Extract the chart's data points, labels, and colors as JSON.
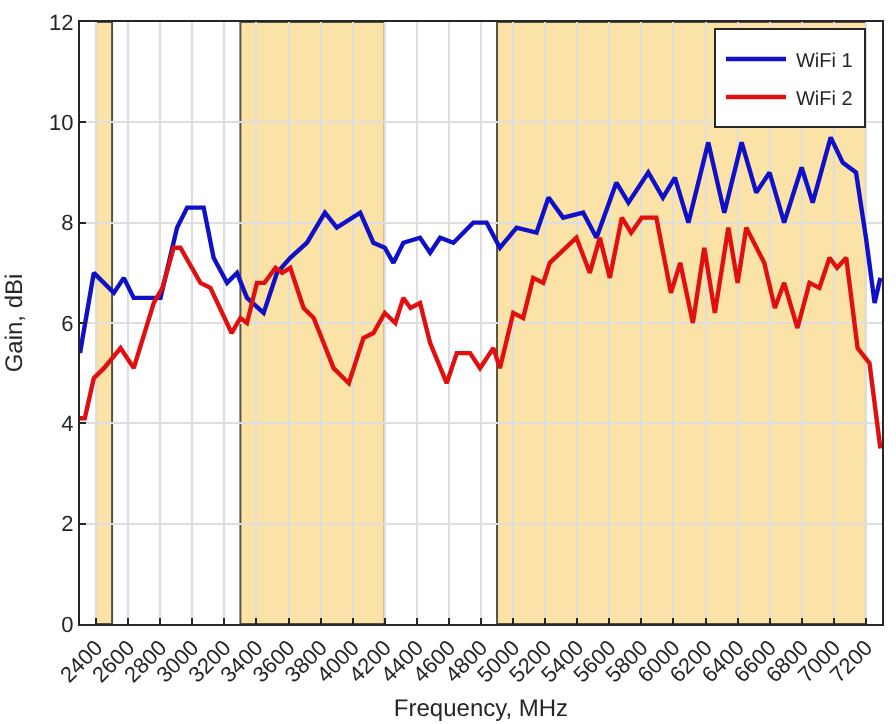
{
  "chart_data": {
    "type": "line",
    "xlabel": "Frequency, MHz",
    "ylabel": "Gain, dBi",
    "xlim": [
      2300,
      7300
    ],
    "ylim": [
      0,
      12
    ],
    "xticks": [
      2400,
      2600,
      2800,
      3000,
      3200,
      3400,
      3600,
      3800,
      4000,
      4200,
      4400,
      4600,
      4800,
      5000,
      5200,
      5400,
      5600,
      5800,
      6000,
      6200,
      6400,
      6600,
      6800,
      7000,
      7200
    ],
    "yticks": [
      0,
      2,
      4,
      6,
      8,
      10,
      12
    ],
    "grid": true,
    "legend": "top right",
    "marker": "none",
    "line_style": "solid",
    "bands": [
      {
        "axis": "x",
        "from": 2400,
        "to": 2500,
        "color": "#fbe3a8"
      },
      {
        "axis": "x",
        "from": 3300,
        "to": 4200,
        "color": "#fbe3a8"
      },
      {
        "axis": "x",
        "from": 4900,
        "to": 7200,
        "color": "#fbe3a8"
      }
    ],
    "series": [
      {
        "name": "WiFi 1",
        "color": "#1010c8",
        "x": [
          2300,
          2386,
          2511,
          2573,
          2635,
          2802,
          2905,
          2968,
          3071,
          3133,
          3217,
          3279,
          3341,
          3445,
          3528,
          3611,
          3715,
          3827,
          3901,
          4047,
          4129,
          4200,
          4254,
          4316,
          4420,
          4483,
          4545,
          4628,
          4752,
          4835,
          4918,
          5022,
          5146,
          5221,
          5312,
          5437,
          5520,
          5644,
          5719,
          5843,
          5934,
          6009,
          6093,
          6217,
          6317,
          6425,
          6516,
          6599,
          6690,
          6799,
          6868,
          6980,
          7055,
          7138,
          7200,
          7254,
          7290
        ],
        "values": [
          5.4,
          7.0,
          6.6,
          6.9,
          6.5,
          6.5,
          7.9,
          8.3,
          8.3,
          7.3,
          6.8,
          7.0,
          6.5,
          6.2,
          7.0,
          7.3,
          7.6,
          8.2,
          7.9,
          8.2,
          7.6,
          7.5,
          7.2,
          7.6,
          7.7,
          7.4,
          7.7,
          7.6,
          8.0,
          8.0,
          7.5,
          7.9,
          7.8,
          8.5,
          8.1,
          8.2,
          7.7,
          8.8,
          8.4,
          9.0,
          8.5,
          8.9,
          8.0,
          9.6,
          8.2,
          9.6,
          8.6,
          9.0,
          8.0,
          9.1,
          8.4,
          9.7,
          9.2,
          9.0,
          7.7,
          6.4,
          6.9
        ]
      },
      {
        "name": "WiFi 2",
        "color": "#e01010",
        "x": [
          2300,
          2330,
          2386,
          2450,
          2553,
          2635,
          2760,
          2814,
          2884,
          2926,
          3051,
          3113,
          3245,
          3300,
          3341,
          3403,
          3450,
          3519,
          3560,
          3611,
          3694,
          3757,
          3881,
          3976,
          4067,
          4129,
          4200,
          4266,
          4316,
          4360,
          4420,
          4483,
          4586,
          4649,
          4732,
          4794,
          4877,
          4918,
          5001,
          5063,
          5125,
          5188,
          5229,
          5395,
          5478,
          5541,
          5603,
          5678,
          5736,
          5802,
          5893,
          5984,
          6042,
          6121,
          6192,
          6258,
          6342,
          6400,
          6454,
          6566,
          6632,
          6690,
          6773,
          6848,
          6910,
          6973,
          7020,
          7077,
          7148,
          7222,
          7290
        ],
        "values": [
          4.1,
          4.1,
          4.9,
          5.1,
          5.5,
          5.1,
          6.4,
          6.7,
          7.5,
          7.5,
          6.8,
          6.7,
          5.8,
          6.1,
          6.0,
          6.8,
          6.8,
          7.1,
          7.0,
          7.1,
          6.3,
          6.1,
          5.1,
          4.8,
          5.7,
          5.8,
          6.2,
          6.0,
          6.5,
          6.3,
          6.4,
          5.6,
          4.8,
          5.4,
          5.4,
          5.1,
          5.5,
          5.1,
          6.2,
          6.1,
          6.9,
          6.8,
          7.2,
          7.7,
          7.0,
          7.7,
          6.9,
          8.1,
          7.8,
          8.1,
          8.1,
          6.6,
          7.2,
          6.0,
          7.5,
          6.2,
          7.9,
          6.8,
          7.9,
          7.2,
          6.3,
          6.8,
          5.9,
          6.8,
          6.7,
          7.3,
          7.1,
          7.3,
          5.5,
          5.2,
          3.5
        ]
      }
    ]
  }
}
